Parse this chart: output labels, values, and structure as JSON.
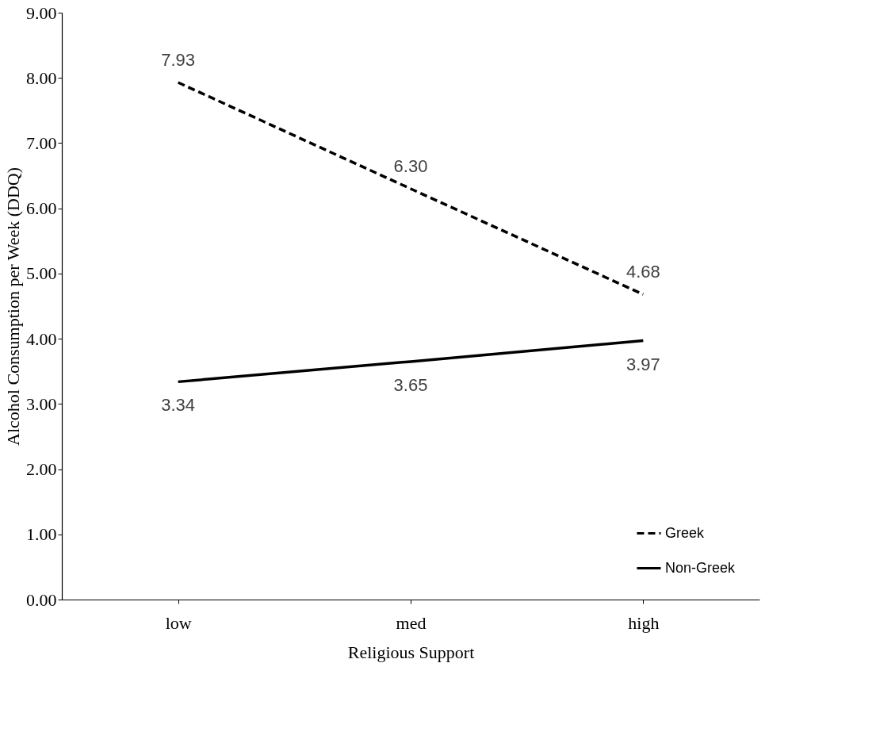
{
  "chart_data": {
    "type": "line",
    "xlabel": "Religious Support",
    "ylabel": "Alcohol Consumption per Week (DDQ)",
    "categories": [
      "low",
      "med",
      "high"
    ],
    "series": [
      {
        "name": "Greek",
        "color": "#000000",
        "line_style": "dashed",
        "values": [
          7.93,
          6.3,
          4.68
        ],
        "value_labels": [
          "7.93",
          "6.30",
          "4.68"
        ]
      },
      {
        "name": "Non-Greek",
        "color": "#000000",
        "line_style": "solid",
        "values": [
          3.34,
          3.65,
          3.97
        ],
        "value_labels": [
          "3.34",
          "3.65",
          "3.97"
        ]
      }
    ],
    "ylim": [
      0,
      9
    ],
    "yticks": [
      {
        "value": 0,
        "label": "0.00"
      },
      {
        "value": 1,
        "label": "1.00"
      },
      {
        "value": 2,
        "label": "2.00"
      },
      {
        "value": 3,
        "label": "3.00"
      },
      {
        "value": 4,
        "label": "4.00"
      },
      {
        "value": 5,
        "label": "5.00"
      },
      {
        "value": 6,
        "label": "6.00"
      },
      {
        "value": 7,
        "label": "7.00"
      },
      {
        "value": 8,
        "label": "8.00"
      },
      {
        "value": 9,
        "label": "9.00"
      }
    ],
    "grid": false,
    "legend": "bottom right",
    "marker": "none"
  }
}
